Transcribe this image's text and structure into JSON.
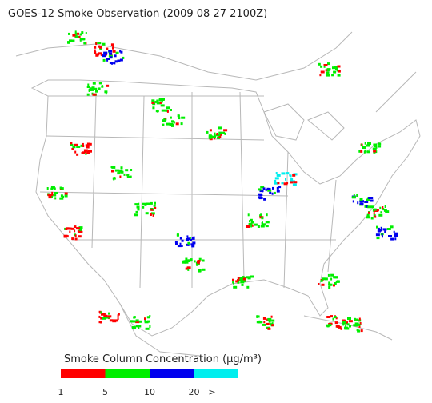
{
  "title": "GOES-12 Smoke Observation (2009 08 27  2100Z)",
  "legend": {
    "title": "Smoke Column Concentration (μg/m³)",
    "colors": [
      "#ff0000",
      "#00ee00",
      "#0000ee",
      "#00eeee"
    ],
    "labels": [
      "1",
      "5",
      "10",
      "20",
      ">"
    ]
  }
}
